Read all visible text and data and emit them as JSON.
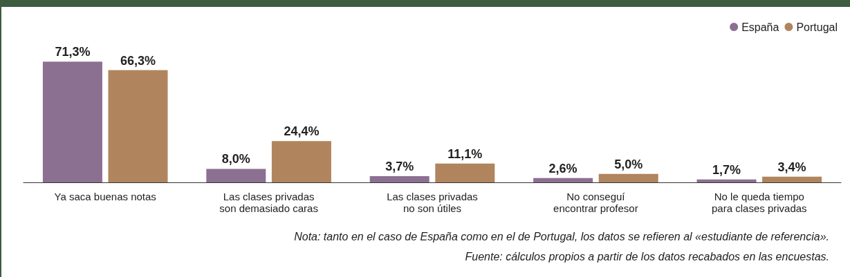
{
  "chart_data": {
    "type": "bar",
    "categories": [
      "Ya saca buenas notas",
      "Las clases privadas\nson demasiado caras",
      "Las clases privadas\nno son útiles",
      "No conseguí\nencontrar profesor",
      "No le queda tiempo\npara clases privadas"
    ],
    "series": [
      {
        "name": "España",
        "color": "#8c7092",
        "values": [
          71.3,
          8.0,
          3.7,
          2.6,
          1.7
        ],
        "value_labels": [
          "71,3%",
          "8,0%",
          "3,7%",
          "2,6%",
          "1,7%"
        ]
      },
      {
        "name": "Portugal",
        "color": "#b0855e",
        "values": [
          66.3,
          24.4,
          11.1,
          5.0,
          3.4
        ],
        "value_labels": [
          "66,3%",
          "24,4%",
          "11,1%",
          "5,0%",
          "3,4%"
        ]
      }
    ],
    "legend": "top right",
    "annotations": [
      "Nota: tanto en el caso de España como en el de Portugal, los datos se refieren al «estudiante de referencia».",
      "Fuente: cálculos propios a partir de los datos recabados en las encuestas."
    ]
  }
}
